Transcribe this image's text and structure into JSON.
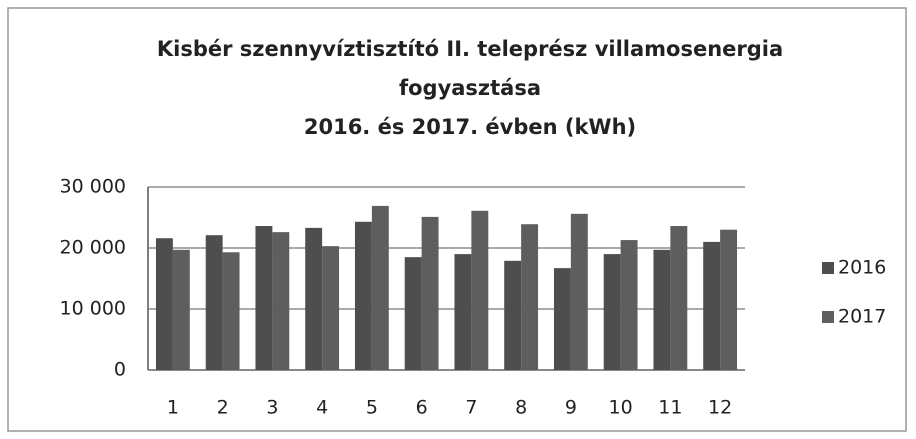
{
  "chart_data": {
    "type": "bar",
    "title": [
      "Kisbér szennyvíztisztító II. teleprész villamosenergia",
      "fogyasztása",
      "2016. és 2017. évben (kWh)"
    ],
    "categories": [
      "1",
      "2",
      "3",
      "4",
      "5",
      "6",
      "7",
      "8",
      "9",
      "10",
      "11",
      "12"
    ],
    "series": [
      {
        "name": "2016",
        "color": "#4e4e4e",
        "values": [
          21600,
          22100,
          23600,
          23300,
          24300,
          18500,
          19000,
          17900,
          16700,
          19000,
          19700,
          21000
        ]
      },
      {
        "name": "2017",
        "color": "#5e5e5e",
        "values": [
          19700,
          19300,
          22600,
          20300,
          26900,
          25100,
          26100,
          23900,
          25600,
          21300,
          23600,
          23000
        ]
      }
    ],
    "ylim": [
      0,
      30000
    ],
    "yticks": [
      0,
      {
        "value": 10000,
        "label": "10 000"
      },
      {
        "value": 20000,
        "label": "20 000"
      },
      {
        "value": 30000,
        "label": "30 000"
      }
    ],
    "grid": true,
    "legend": "right"
  }
}
